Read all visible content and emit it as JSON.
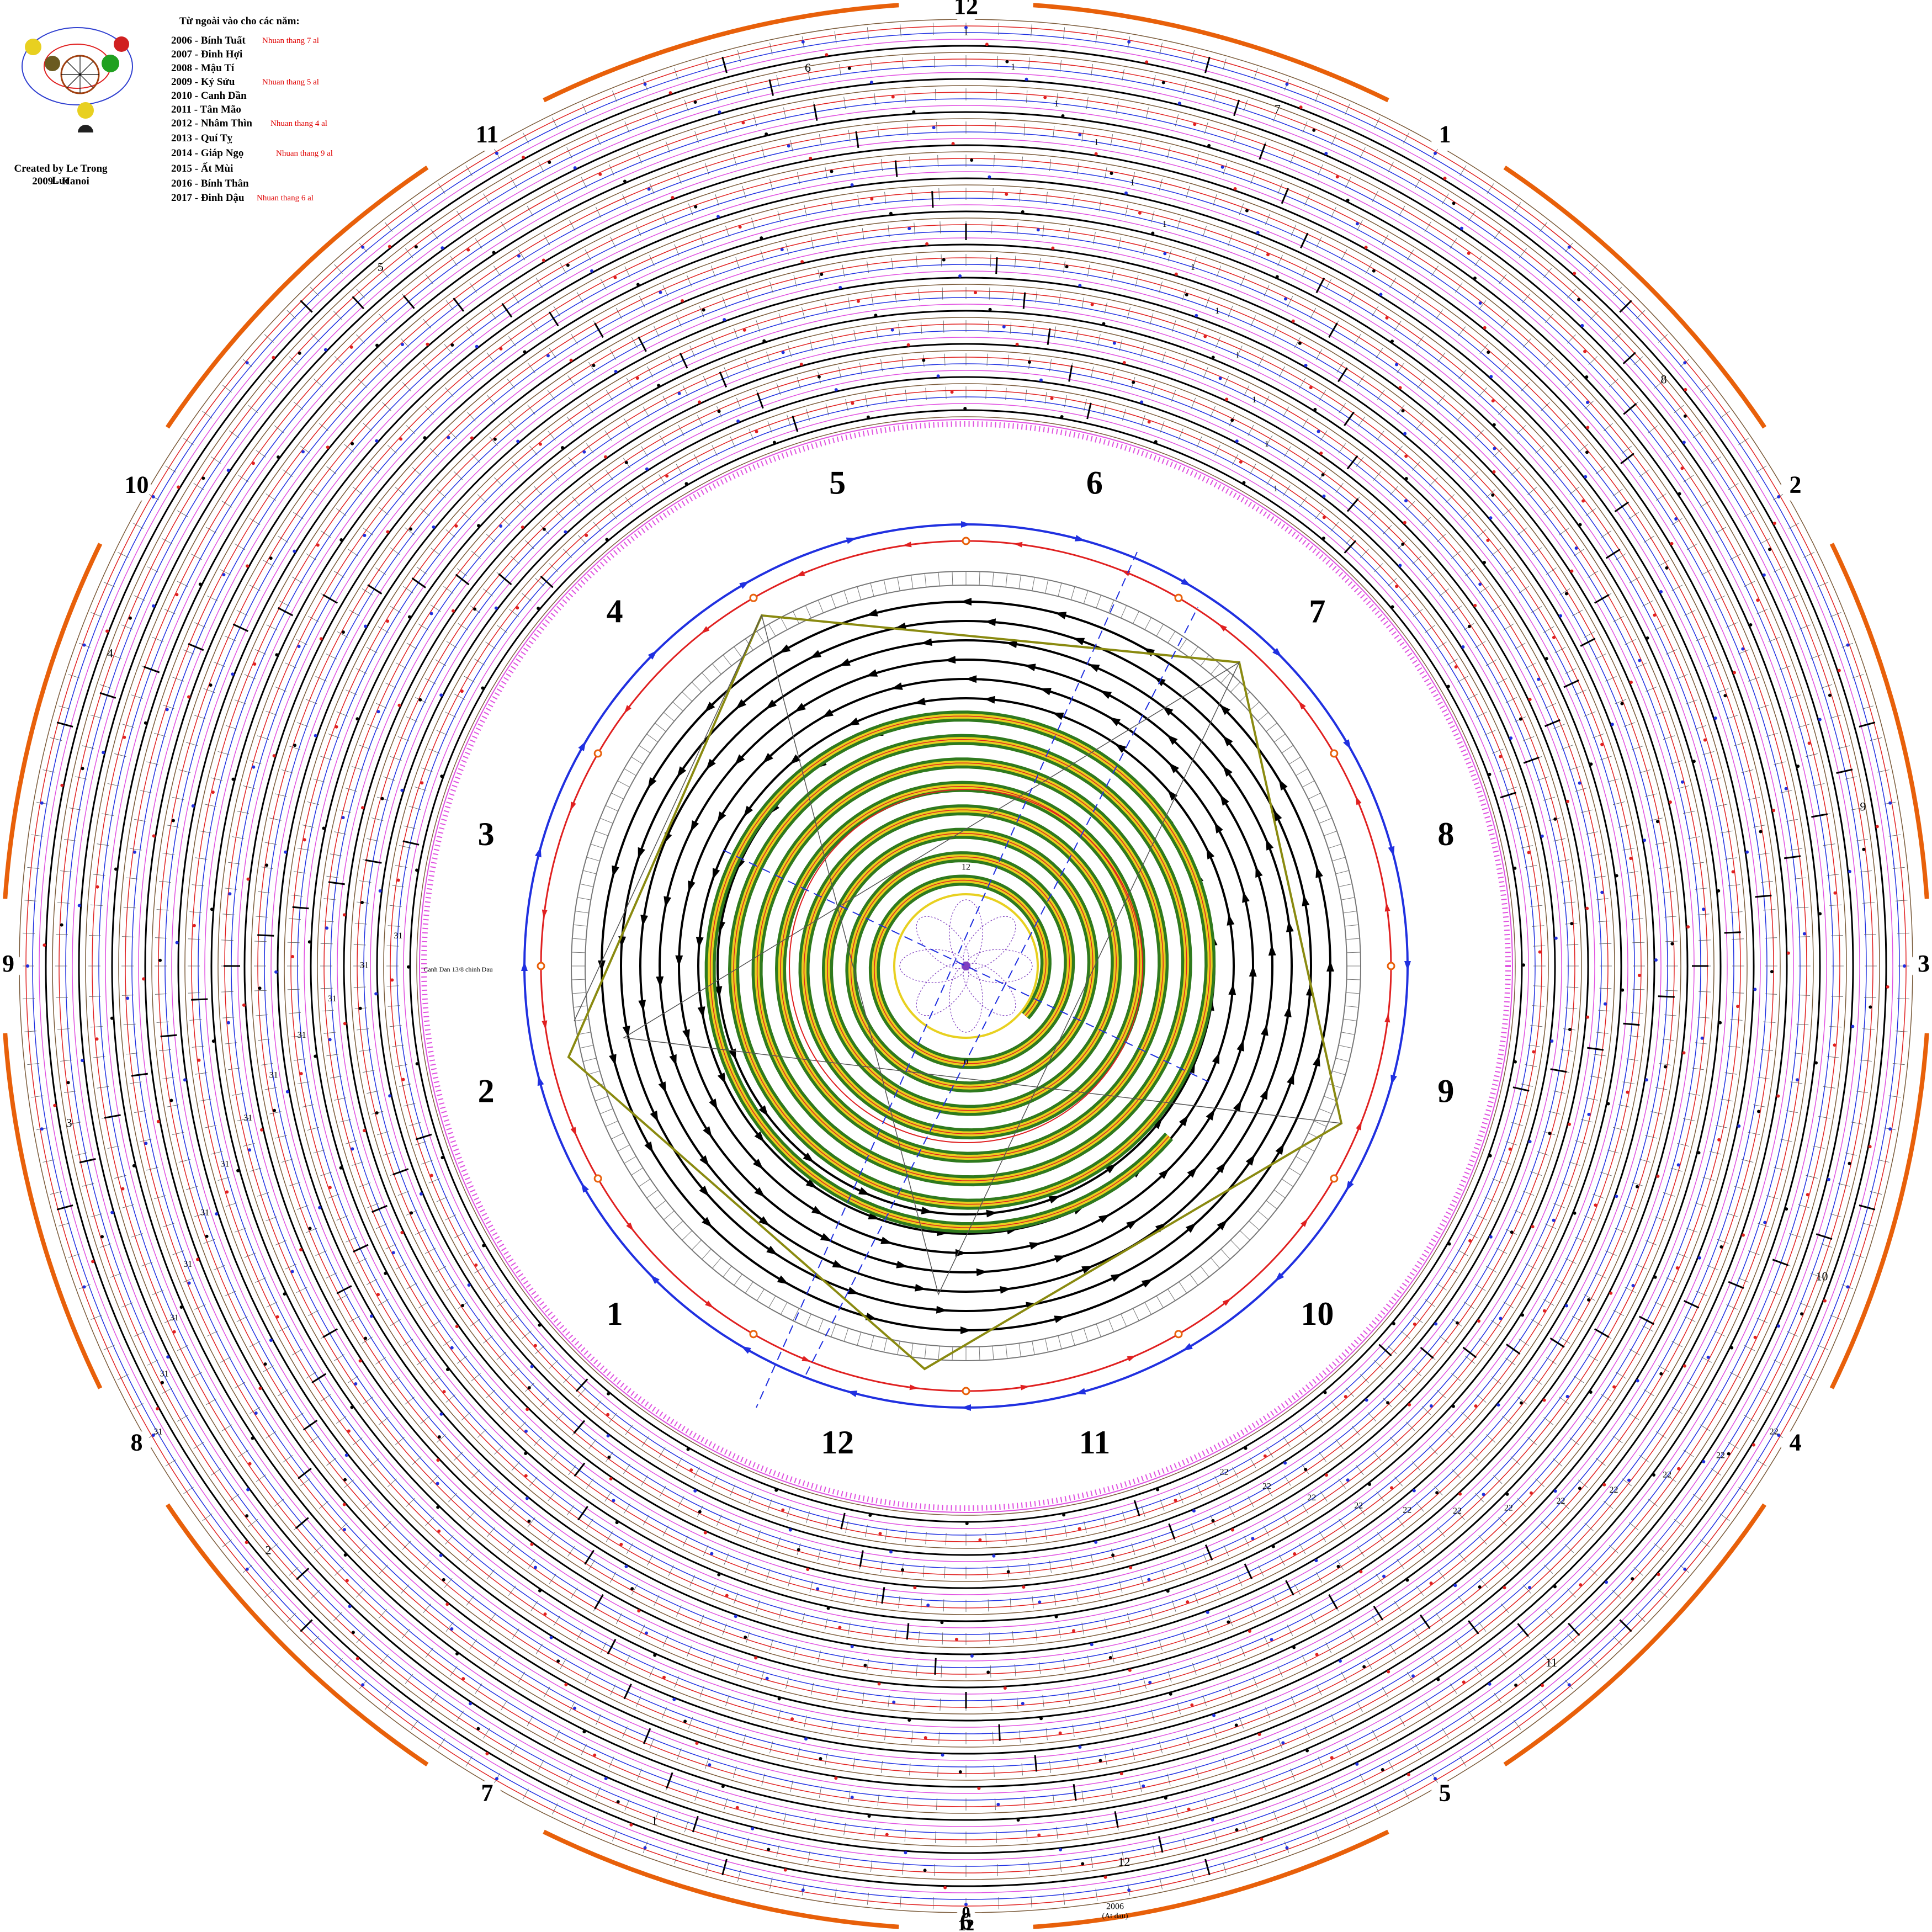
{
  "legend": {
    "title": "Từ ngoài vào cho các năm:",
    "years": [
      {
        "label": "2006 - Bính Tuất",
        "note": "Nhuan thang 7 al"
      },
      {
        "label": "2007 - Đinh Hợi",
        "note": ""
      },
      {
        "label": "2008 - Mậu Tí",
        "note": ""
      },
      {
        "label": "2009 - Kỷ Sửu",
        "note": "Nhuan thang 5 al"
      },
      {
        "label": "2010 - Canh Dần",
        "note": ""
      },
      {
        "label": "2011 - Tân Mão",
        "note": ""
      },
      {
        "label": "2012 - Nhâm Thìn",
        "note": "Nhuan thang 4 al"
      },
      {
        "label": "2013 - Quí Tỵ",
        "note": ""
      },
      {
        "label": "2014 - Giáp Ngọ",
        "note": "Nhuan thang 9 al"
      },
      {
        "label": "2015 - Ất Mùi",
        "note": ""
      },
      {
        "label": "2016 - Bính Thân",
        "note": ""
      },
      {
        "label": "2017 - Đinh Dậu",
        "note": "Nhuan thang 6 al"
      }
    ],
    "credit_line1": "Created by Le Trong Luc",
    "credit_line2": "2009 - Hanoi"
  },
  "outer_hour_labels": [
    "12",
    "1",
    "2",
    "3",
    "4",
    "5",
    "6",
    "7",
    "8",
    "9",
    "10",
    "11"
  ],
  "outer_ring_month_labels": [
    "1",
    "2",
    "3",
    "4",
    "5",
    "6",
    "7",
    "8",
    "9",
    "10",
    "11",
    "12"
  ],
  "inner_month_labels": [
    "1",
    "2",
    "3",
    "4",
    "5",
    "6",
    "7",
    "8",
    "9",
    "10",
    "11",
    "12"
  ],
  "bottom_labels": {
    "zero": "0",
    "twelve": "12",
    "start_year": "2006",
    "start_note": "(At dau)"
  },
  "day_marks": [
    "1",
    "22",
    "31"
  ],
  "left_caption": "Canh Dan 13/8 chinh Dau",
  "center_labels": {
    "top": "12",
    "bottom": "0"
  },
  "colors": {
    "outer_arc": "#e8600a",
    "ring_black": "#000000",
    "ring_red": "#e02020",
    "ring_blue": "#2030e0",
    "ring_pink": "#e050e0",
    "ring_brown": "#7a5a3a",
    "spiral_green": "#2f7a1e",
    "spiral_yellow": "#e8d020",
    "path_olive": "#8a8a10",
    "accent_orange": "#e8600a"
  }
}
